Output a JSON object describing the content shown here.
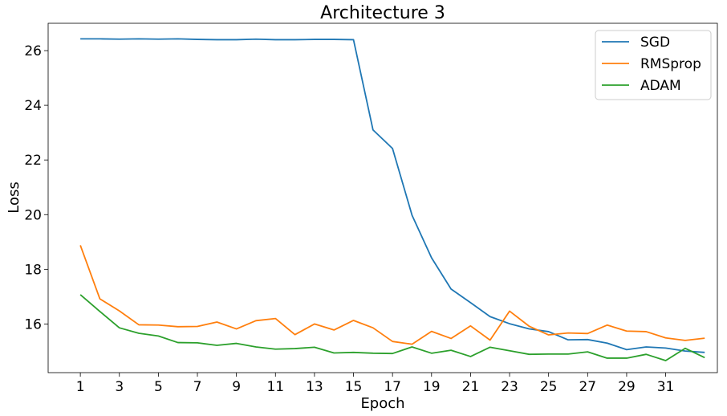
{
  "chart_data": {
    "type": "line",
    "title": "Architecture 3",
    "xlabel": "Epoch",
    "ylabel": "Loss",
    "xlim": [
      -0.65,
      33.65
    ],
    "ylim": [
      14.22,
      27.0
    ],
    "x": [
      1,
      2,
      3,
      4,
      5,
      6,
      7,
      8,
      9,
      10,
      11,
      12,
      13,
      14,
      15,
      16,
      17,
      18,
      19,
      20,
      21,
      22,
      23,
      24,
      25,
      26,
      27,
      28,
      29,
      30,
      31,
      32,
      33
    ],
    "xticks": [
      1,
      3,
      5,
      7,
      9,
      11,
      13,
      15,
      17,
      19,
      21,
      23,
      25,
      27,
      29,
      31
    ],
    "yticks": [
      16,
      18,
      20,
      22,
      24,
      26
    ],
    "grid": false,
    "legend_position": "top-right",
    "series": [
      {
        "name": "SGD",
        "color": "#1f77b4",
        "values": [
          26.43,
          26.43,
          26.42,
          26.43,
          26.42,
          26.43,
          26.41,
          26.4,
          26.4,
          26.42,
          26.4,
          26.4,
          26.41,
          26.41,
          26.4,
          23.1,
          22.42,
          19.98,
          18.42,
          17.28,
          16.78,
          16.27,
          16.01,
          15.82,
          15.72,
          15.42,
          15.43,
          15.3,
          15.06,
          15.16,
          15.12,
          15.01,
          14.96
        ]
      },
      {
        "name": "RMSprop",
        "color": "#ff7f0e",
        "values": [
          18.88,
          16.92,
          16.48,
          15.97,
          15.96,
          15.9,
          15.91,
          16.07,
          15.82,
          16.12,
          16.2,
          15.61,
          16.0,
          15.78,
          16.13,
          15.86,
          15.36,
          15.26,
          15.73,
          15.47,
          15.93,
          15.41,
          16.47,
          15.92,
          15.6,
          15.67,
          15.65,
          15.96,
          15.74,
          15.72,
          15.49,
          15.4,
          15.48
        ]
      },
      {
        "name": "ADAM",
        "color": "#2ca02c",
        "values": [
          17.07,
          16.46,
          15.86,
          15.66,
          15.56,
          15.32,
          15.31,
          15.22,
          15.29,
          15.16,
          15.08,
          15.1,
          15.15,
          14.94,
          14.96,
          14.93,
          14.92,
          15.16,
          14.93,
          15.04,
          14.81,
          15.15,
          15.02,
          14.89,
          14.9,
          14.9,
          14.98,
          14.75,
          14.75,
          14.89,
          14.66,
          15.11,
          14.77
        ]
      }
    ]
  }
}
